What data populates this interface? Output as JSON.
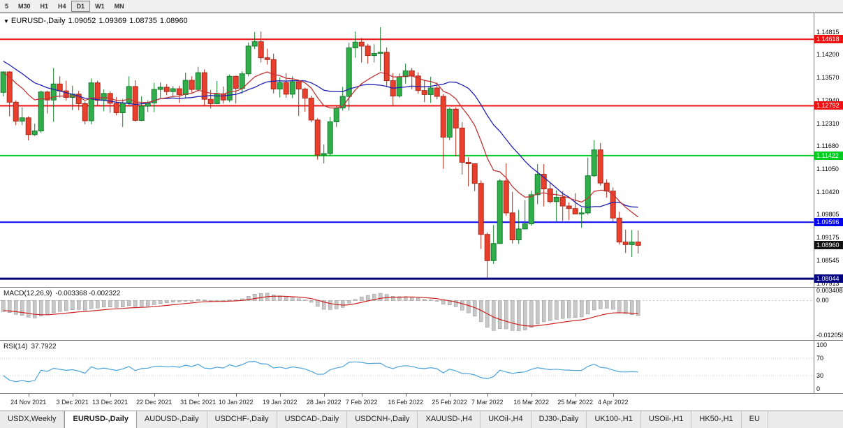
{
  "icons": {
    "dropdown_glyph": "▼"
  },
  "toolbar": {
    "timeframes": [
      {
        "label": "5",
        "active": false
      },
      {
        "label": "M30",
        "active": false
      },
      {
        "label": "H1",
        "active": false
      },
      {
        "label": "H4",
        "active": false
      },
      {
        "label": "D1",
        "active": true
      },
      {
        "label": "W1",
        "active": false
      },
      {
        "label": "MN",
        "active": false
      }
    ]
  },
  "header": {
    "symbol": "EURUSD-,Daily",
    "open": "1.09052",
    "high": "1.09369",
    "low": "1.08735",
    "close": "1.08960"
  },
  "colors": {
    "up": "#2fae49",
    "up_border": "#157a2e",
    "down": "#e8402d",
    "down_border": "#a8281a",
    "badge_black": "#111111",
    "macd_hist": "#c8c8c8",
    "macd_hist_stroke": "#8f8f8f",
    "macd_signal": "#cc2222"
  },
  "chart_data": {
    "type": "candlestick",
    "symbol": "EURUSD-,Daily",
    "timeframe": "Daily",
    "y_domain": [
      1.15331,
      1.07817
    ],
    "axis_ticks": [
      "1.14815",
      "1.14200",
      "1.13570",
      "1.12940",
      "1.12310",
      "1.11680",
      "1.11050",
      "1.10420",
      "1.09805",
      "1.09175",
      "1.08545",
      "1.07913"
    ],
    "levels": [
      {
        "value": 1.14618,
        "text": "1.14618",
        "color": "#ee1111",
        "thickness": 2
      },
      {
        "value": 1.12792,
        "text": "1.12792",
        "color": "#ee1111",
        "thickness": 2
      },
      {
        "value": 1.11422,
        "text": "1.11422",
        "color": "#00cc22",
        "thickness": 2
      },
      {
        "value": 1.09596,
        "text": "1.09596",
        "color": "#0000ee",
        "thickness": 2
      },
      {
        "value": 1.08044,
        "text": "1.08044",
        "color": "#000080",
        "thickness": 3
      }
    ],
    "current_price": {
      "value": 1.0896,
      "text": "1.08960"
    },
    "moving_averages": {
      "slow": {
        "type": "sma",
        "period": 20,
        "color": "#2121b0"
      },
      "fast": {
        "type": "ema",
        "period": 13,
        "color": "#c03535"
      }
    },
    "pre_closes": [
      1.15,
      1.1492,
      1.1483,
      1.1474,
      1.1465,
      1.1455,
      1.1445,
      1.1435,
      1.1424,
      1.1413,
      1.1402,
      1.1391,
      1.138,
      1.137,
      1.136,
      1.135,
      1.134,
      1.1332,
      1.1325,
      1.132
    ],
    "candles": [
      [
        1.1316,
        1.1374,
        1.1305,
        1.1372
      ],
      [
        1.1372,
        1.1374,
        1.125,
        1.1289
      ],
      [
        1.1289,
        1.1294,
        1.1226,
        1.1237
      ],
      [
        1.1237,
        1.1275,
        1.1226,
        1.1246
      ],
      [
        1.1246,
        1.125,
        1.1184,
        1.12
      ],
      [
        1.12,
        1.123,
        1.1196,
        1.121
      ],
      [
        1.121,
        1.132,
        1.1205,
        1.1317
      ],
      [
        1.1317,
        1.132,
        1.1258,
        1.1295
      ],
      [
        1.1295,
        1.1383,
        1.1235,
        1.1339
      ],
      [
        1.1339,
        1.136,
        1.1302,
        1.132
      ],
      [
        1.132,
        1.1348,
        1.1293,
        1.1302
      ],
      [
        1.1302,
        1.1334,
        1.1267,
        1.1311
      ],
      [
        1.1311,
        1.132,
        1.1267,
        1.1285
      ],
      [
        1.1285,
        1.1291,
        1.1228,
        1.1238
      ],
      [
        1.1238,
        1.1354,
        1.1228,
        1.1342
      ],
      [
        1.1342,
        1.1348,
        1.128,
        1.1294
      ],
      [
        1.1294,
        1.1324,
        1.1264,
        1.1313
      ],
      [
        1.1313,
        1.1319,
        1.126,
        1.1286
      ],
      [
        1.1286,
        1.1303,
        1.1253,
        1.126
      ],
      [
        1.126,
        1.1298,
        1.1221,
        1.1287
      ],
      [
        1.1287,
        1.136,
        1.128,
        1.1332
      ],
      [
        1.1332,
        1.1349,
        1.1236,
        1.1239
      ],
      [
        1.1239,
        1.1305,
        1.1237,
        1.1278
      ],
      [
        1.1278,
        1.1294,
        1.1262,
        1.1287
      ],
      [
        1.1287,
        1.1342,
        1.1262,
        1.1324
      ],
      [
        1.1324,
        1.1343,
        1.1301,
        1.133
      ],
      [
        1.133,
        1.1339,
        1.1308,
        1.1318
      ],
      [
        1.1318,
        1.1333,
        1.1304,
        1.1326
      ],
      [
        1.1326,
        1.1334,
        1.1287,
        1.131
      ],
      [
        1.131,
        1.137,
        1.1301,
        1.1349
      ],
      [
        1.1349,
        1.136,
        1.1315,
        1.1324
      ],
      [
        1.1324,
        1.1386,
        1.1319,
        1.137
      ],
      [
        1.137,
        1.1379,
        1.1279,
        1.1297
      ],
      [
        1.1297,
        1.1323,
        1.1272,
        1.1285
      ],
      [
        1.1285,
        1.1347,
        1.1284,
        1.1312
      ],
      [
        1.1312,
        1.1332,
        1.1285,
        1.1295
      ],
      [
        1.1295,
        1.1365,
        1.1289,
        1.136
      ],
      [
        1.136,
        1.1362,
        1.1285,
        1.1327
      ],
      [
        1.1327,
        1.1374,
        1.1313,
        1.1367
      ],
      [
        1.1367,
        1.1453,
        1.136,
        1.1443
      ],
      [
        1.1443,
        1.1482,
        1.1435,
        1.1455
      ],
      [
        1.1455,
        1.1483,
        1.1398,
        1.1411
      ],
      [
        1.1411,
        1.1436,
        1.1392,
        1.1406
      ],
      [
        1.1406,
        1.1422,
        1.1313,
        1.1325
      ],
      [
        1.1325,
        1.1357,
        1.1302,
        1.1343
      ],
      [
        1.1343,
        1.1369,
        1.1301,
        1.1311
      ],
      [
        1.1311,
        1.136,
        1.13,
        1.1345
      ],
      [
        1.1345,
        1.1349,
        1.1251,
        1.1325
      ],
      [
        1.1325,
        1.1329,
        1.1263,
        1.13
      ],
      [
        1.13,
        1.1307,
        1.1234,
        1.124
      ],
      [
        1.124,
        1.1245,
        1.1131,
        1.1144
      ],
      [
        1.1144,
        1.1173,
        1.1121,
        1.1148
      ],
      [
        1.1148,
        1.1248,
        1.1141,
        1.1235
      ],
      [
        1.1235,
        1.128,
        1.1221,
        1.1273
      ],
      [
        1.1273,
        1.1331,
        1.1266,
        1.1305
      ],
      [
        1.1305,
        1.1452,
        1.1266,
        1.1438
      ],
      [
        1.1438,
        1.1483,
        1.1411,
        1.1454
      ],
      [
        1.1454,
        1.1465,
        1.1398,
        1.1443
      ],
      [
        1.1443,
        1.1449,
        1.1395,
        1.1417
      ],
      [
        1.1417,
        1.1448,
        1.1398,
        1.1423
      ],
      [
        1.1423,
        1.1495,
        1.1375,
        1.1426
      ],
      [
        1.1426,
        1.1439,
        1.133,
        1.1348
      ],
      [
        1.1348,
        1.1369,
        1.1278,
        1.1306
      ],
      [
        1.1306,
        1.1368,
        1.1301,
        1.1359
      ],
      [
        1.1359,
        1.1395,
        1.134,
        1.1375
      ],
      [
        1.1375,
        1.1383,
        1.1324,
        1.1361
      ],
      [
        1.1361,
        1.1371,
        1.1312,
        1.1321
      ],
      [
        1.1321,
        1.1348,
        1.1289,
        1.131
      ],
      [
        1.131,
        1.1359,
        1.1287,
        1.1328
      ],
      [
        1.1328,
        1.1343,
        1.1297,
        1.1305
      ],
      [
        1.1305,
        1.1311,
        1.1106,
        1.1193
      ],
      [
        1.1193,
        1.1274,
        1.1185,
        1.127
      ],
      [
        1.127,
        1.1275,
        1.114,
        1.1218
      ],
      [
        1.1218,
        1.1234,
        1.109,
        1.1124
      ],
      [
        1.1124,
        1.1138,
        1.1058,
        1.112
      ],
      [
        1.112,
        1.1121,
        1.1045,
        1.1066
      ],
      [
        1.1066,
        1.1074,
        1.0886,
        1.0926
      ],
      [
        1.0926,
        1.0931,
        1.0806,
        1.0854
      ],
      [
        1.0854,
        1.0952,
        1.0845,
        1.0901
      ],
      [
        1.0901,
        1.1078,
        1.09,
        1.1073
      ],
      [
        1.1073,
        1.1121,
        1.0977,
        1.0985
      ],
      [
        1.0985,
        1.1043,
        1.0901,
        1.0911
      ],
      [
        1.0911,
        1.0993,
        1.09,
        1.0941
      ],
      [
        1.0941,
        1.102,
        1.094,
        1.0955
      ],
      [
        1.0955,
        1.1046,
        1.095,
        1.1035
      ],
      [
        1.1035,
        1.1119,
        1.1009,
        1.1091
      ],
      [
        1.1091,
        1.1119,
        1.1003,
        1.1051
      ],
      [
        1.1051,
        1.1069,
        1.1011,
        1.1016
      ],
      [
        1.1016,
        1.1047,
        1.0962,
        1.1028
      ],
      [
        1.1028,
        1.1044,
        1.0963,
        1.1004
      ],
      [
        1.1004,
        1.1014,
        1.0965,
        1.0997
      ],
      [
        1.0997,
        1.1039,
        1.0981,
        1.0982
      ],
      [
        1.0982,
        1.0999,
        1.0944,
        1.0985
      ],
      [
        1.0985,
        1.1137,
        1.098,
        1.1087
      ],
      [
        1.1087,
        1.1185,
        1.1084,
        1.1158
      ],
      [
        1.1158,
        1.1177,
        1.106,
        1.1067
      ],
      [
        1.1067,
        1.1077,
        1.1027,
        1.1045
      ],
      [
        1.1045,
        1.1055,
        1.0961,
        1.0971
      ],
      [
        1.0971,
        1.0988,
        1.0898,
        1.0905
      ],
      [
        1.0905,
        1.0939,
        1.0875,
        1.0898
      ],
      [
        1.0898,
        1.0938,
        1.0864,
        1.0905
      ],
      [
        1.09052,
        1.09369,
        1.08735,
        1.0896
      ]
    ],
    "time_labels": [
      {
        "index": 4,
        "text": "24 Nov 2021"
      },
      {
        "index": 11,
        "text": "3 Dec 2021"
      },
      {
        "index": 17,
        "text": "13 Dec 2021"
      },
      {
        "index": 24,
        "text": "22 Dec 2021"
      },
      {
        "index": 31,
        "text": "31 Dec 2021"
      },
      {
        "index": 37,
        "text": "10 Jan 2022"
      },
      {
        "index": 44,
        "text": "19 Jan 2022"
      },
      {
        "index": 51,
        "text": "28 Jan 2022"
      },
      {
        "index": 57,
        "text": "7 Feb 2022"
      },
      {
        "index": 64,
        "text": "16 Feb 2022"
      },
      {
        "index": 71,
        "text": "25 Feb 2022"
      },
      {
        "index": 77,
        "text": "7 Mar 2022"
      },
      {
        "index": 84,
        "text": "16 Mar 2022"
      },
      {
        "index": 91,
        "text": "25 Mar 2022"
      },
      {
        "index": 97,
        "text": "4 Apr 2022"
      }
    ],
    "indicators": {
      "macd": {
        "label": "MACD(12,26,9)",
        "values_text": "-0.003368 -0.002322",
        "params": [
          12,
          26,
          9
        ],
        "domain": [
          0.0045,
          -0.0138
        ],
        "axis": [
          {
            "value": 0.003408,
            "text": "0.003408"
          },
          {
            "value": 0,
            "text": "0.00"
          },
          {
            "value": -0.012058,
            "text": "-0.012058"
          }
        ]
      },
      "rsi": {
        "label": "RSI(14)",
        "value_text": "37.7922",
        "period": 14,
        "domain": [
          110,
          -10
        ],
        "levels": [
          70,
          30
        ],
        "color": "#4ba3d9",
        "axis": [
          {
            "value": 100,
            "text": "100"
          },
          {
            "value": 70,
            "text": "70"
          },
          {
            "value": 30,
            "text": "30"
          },
          {
            "value": 0,
            "text": "0"
          }
        ]
      }
    }
  },
  "tabs": [
    {
      "label": "USDX,Weekly",
      "active": false
    },
    {
      "label": "EURUSD-,Daily",
      "active": true
    },
    {
      "label": "AUDUSD-,Daily",
      "active": false
    },
    {
      "label": "USDCHF-,Daily",
      "active": false
    },
    {
      "label": "USDCAD-,Daily",
      "active": false
    },
    {
      "label": "USDCNH-,Daily",
      "active": false
    },
    {
      "label": "XAUUSD-,H4",
      "active": false
    },
    {
      "label": "UKOil-,H4",
      "active": false
    },
    {
      "label": "DJ30-,Daily",
      "active": false
    },
    {
      "label": "UK100-,H1",
      "active": false
    },
    {
      "label": "USOil-,H1",
      "active": false
    },
    {
      "label": "HK50-,H1",
      "active": false
    },
    {
      "label": "EU",
      "active": false
    }
  ]
}
